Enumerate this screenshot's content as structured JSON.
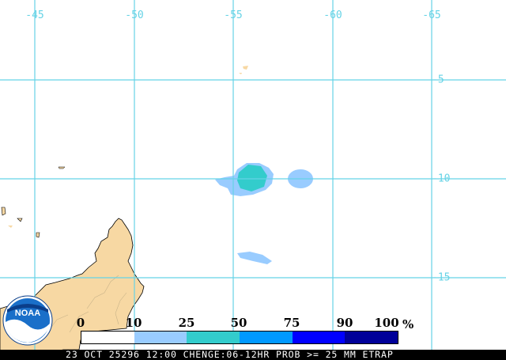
{
  "map": {
    "colors": {
      "land": "#f7d8a3",
      "coast": "#000000",
      "gridline": "#66d3e6",
      "ocean": "#ffffff"
    },
    "longitude_labels": [
      "-45",
      "-50",
      "-55",
      "-60",
      "-65"
    ],
    "latitude_labels": [
      "-5",
      "-10",
      "-15"
    ]
  },
  "legend": {
    "labels": [
      "0",
      "10",
      "25",
      "50",
      "75",
      "90",
      "100"
    ],
    "unit": "%",
    "colors": [
      "#ffffff",
      "#99ccff",
      "#33cccc",
      "#0099ff",
      "#0000ff",
      "#000099"
    ]
  },
  "footer": {
    "text": "23 OCT 25296 12:00 CHENGE:06-12HR PROB >= 25 MM ETRAP"
  },
  "logo": {
    "text": "NOAA",
    "icon": "noaa-logo-icon"
  }
}
